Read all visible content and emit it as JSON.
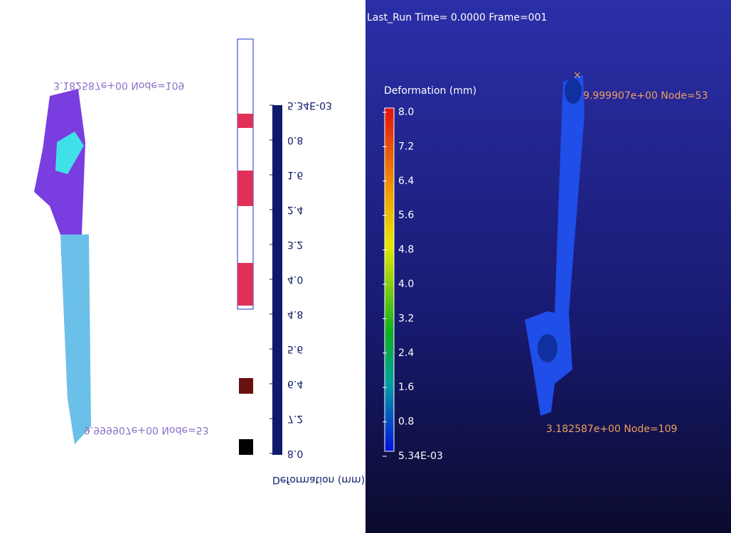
{
  "legend": {
    "title": "Deformation (mm)",
    "scale_labels": [
      "8.0",
      "7.2",
      "6.4",
      "5.6",
      "4.8",
      "4.0",
      "3.2",
      "2.4",
      "1.6",
      "0.8",
      "5.34E-03"
    ]
  },
  "viewport": {
    "header": "Last_Run   Time=  0.0000  Frame=001"
  },
  "nodes": [
    {
      "label": "9.999907e+00 Node=53"
    },
    {
      "label": "3.182587e+00 Node=109"
    }
  ]
}
